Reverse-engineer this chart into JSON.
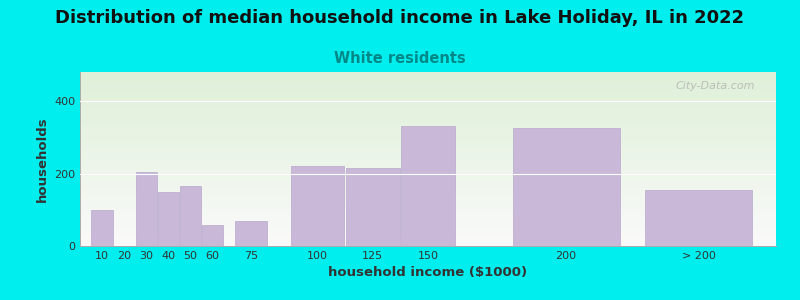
{
  "title": "Distribution of median household income in Lake Holiday, IL in 2022",
  "subtitle": "White residents",
  "xlabel": "household income ($1000)",
  "ylabel": "households",
  "background_color": "#00EEEE",
  "bar_color": "#c9b8d8",
  "bar_edge_color": "#b8a8cc",
  "categories": [
    "10",
    "20",
    "30",
    "40",
    "50",
    "60",
    "75",
    "100",
    "125",
    "150",
    "200",
    "> 200"
  ],
  "values": [
    100,
    0,
    205,
    150,
    165,
    58,
    70,
    222,
    215,
    330,
    325,
    155
  ],
  "bar_lefts": [
    10,
    20,
    30,
    40,
    50,
    60,
    75,
    100,
    125,
    150,
    200,
    260
  ],
  "bar_widths": [
    10,
    10,
    10,
    10,
    10,
    10,
    15,
    25,
    25,
    25,
    50,
    50
  ],
  "xtick_labels": [
    "10",
    "20",
    "30",
    "40",
    "50",
    "60",
    "75",
    "100",
    "125",
    "150",
    "200",
    "> 200"
  ],
  "ylim": [
    0,
    480
  ],
  "xlim": [
    5,
    320
  ],
  "yticks": [
    0,
    200,
    400
  ],
  "title_fontsize": 13,
  "subtitle_fontsize": 10.5,
  "subtitle_color": "#008888",
  "axis_label_fontsize": 9.5,
  "tick_fontsize": 8,
  "watermark": "City-Data.com"
}
